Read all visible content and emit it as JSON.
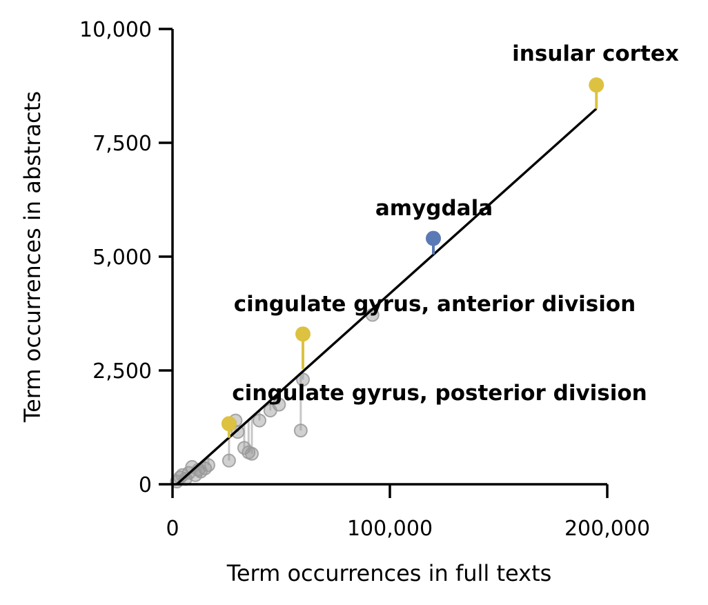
{
  "chart_data": {
    "type": "scatter",
    "xlabel": "Term occurrences in full texts",
    "ylabel": "Term occurrences in abstracts",
    "xlim": [
      0,
      200000
    ],
    "ylim": [
      0,
      10000
    ],
    "x_ticks": [
      0,
      100000,
      200000
    ],
    "x_tick_labels": [
      "0",
      "100,000",
      "200,000"
    ],
    "y_ticks": [
      0,
      2500,
      5000,
      7500,
      10000
    ],
    "y_tick_labels": [
      "0",
      "2,500",
      "5,000",
      "7,500",
      "10,000"
    ],
    "fit_line": [
      [
        2000,
        0
      ],
      [
        195000,
        8250
      ]
    ],
    "colors": {
      "highlight_yellow": "#dcc240",
      "highlight_blue": "#5a7ab6",
      "background_points": "#999999",
      "fit_line": "#000000"
    },
    "highlighted": [
      {
        "label": "insular cortex",
        "x": 195000,
        "y": 8770,
        "fit_y": 8250,
        "color": "#dcc240"
      },
      {
        "label": "amygdala",
        "x": 120000,
        "y": 5400,
        "fit_y": 5050,
        "color": "#5a7ab6"
      },
      {
        "label": "cingulate gyrus, anterior division",
        "x": 60000,
        "y": 3300,
        "fit_y": 2530,
        "color": "#dcc240"
      },
      {
        "label": "cingulate gyrus, posterior division",
        "x": 26000,
        "y": 1330,
        "fit_y": 1020,
        "color": "#dcc240"
      }
    ],
    "points": [
      {
        "x": 2000,
        "y": 60,
        "fit_y": 0
      },
      {
        "x": 3500,
        "y": 150,
        "fit_y": 60
      },
      {
        "x": 4500,
        "y": 200,
        "fit_y": 100
      },
      {
        "x": 6000,
        "y": 120,
        "fit_y": 170
      },
      {
        "x": 7500,
        "y": 250,
        "fit_y": 230
      },
      {
        "x": 9000,
        "y": 380,
        "fit_y": 300
      },
      {
        "x": 10500,
        "y": 200,
        "fit_y": 360
      },
      {
        "x": 12000,
        "y": 320,
        "fit_y": 420
      },
      {
        "x": 13000,
        "y": 280,
        "fit_y": 470
      },
      {
        "x": 15000,
        "y": 350,
        "fit_y": 550
      },
      {
        "x": 16500,
        "y": 420,
        "fit_y": 620
      },
      {
        "x": 26000,
        "y": 520,
        "fit_y": 1020
      },
      {
        "x": 29000,
        "y": 1400,
        "fit_y": 1150
      },
      {
        "x": 30000,
        "y": 1150,
        "fit_y": 1190
      },
      {
        "x": 33000,
        "y": 800,
        "fit_y": 1320
      },
      {
        "x": 35000,
        "y": 700,
        "fit_y": 1400
      },
      {
        "x": 36500,
        "y": 670,
        "fit_y": 1470
      },
      {
        "x": 40000,
        "y": 1400,
        "fit_y": 1620
      },
      {
        "x": 45000,
        "y": 1620,
        "fit_y": 1820
      },
      {
        "x": 49000,
        "y": 1750,
        "fit_y": 2000
      },
      {
        "x": 59000,
        "y": 1180,
        "fit_y": 2410
      },
      {
        "x": 60000,
        "y": 2300,
        "fit_y": 2460
      },
      {
        "x": 92000,
        "y": 3720,
        "fit_y": 3820
      }
    ]
  }
}
